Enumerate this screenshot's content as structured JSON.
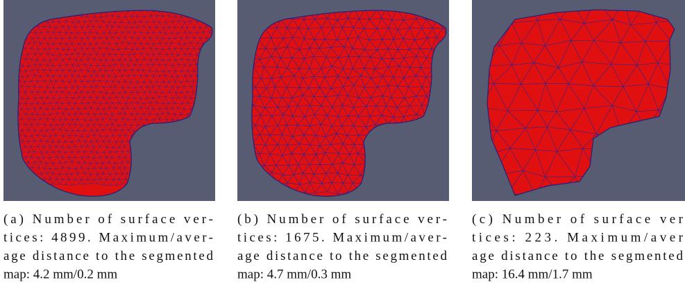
{
  "panels": [
    {
      "caption": [
        "(a) Number of surface ver-",
        "tices: 4899. Maximum/aver-",
        "age distance to the segmented",
        "map: 4.2 mm/0.2 mm"
      ]
    },
    {
      "caption": [
        "(b) Number of surface ver-",
        "tices: 1675. Maximum/aver-",
        "age distance to the segmented",
        "map: 4.7 mm/0.3 mm"
      ]
    },
    {
      "caption": [
        "(c) Number of surface ver",
        "tices: 223. Maximum/aver",
        "age distance to the segmented",
        "map: 16.4 mm/1.7 mm"
      ]
    }
  ]
}
